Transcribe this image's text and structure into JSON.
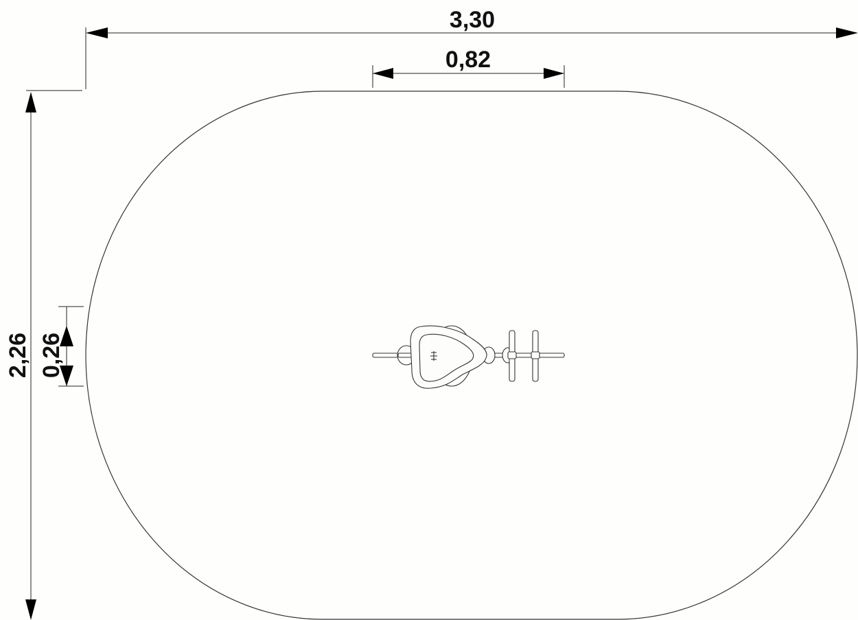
{
  "drawing": {
    "dimension_overall_width": "3,30",
    "dimension_inner_width": "0,82",
    "dimension_overall_height": "2,26",
    "dimension_inner_height": "0,26",
    "line_color": "#222222",
    "background_color": "#fefefc",
    "equipment_icon": "spring-rider-top-view-icon"
  }
}
